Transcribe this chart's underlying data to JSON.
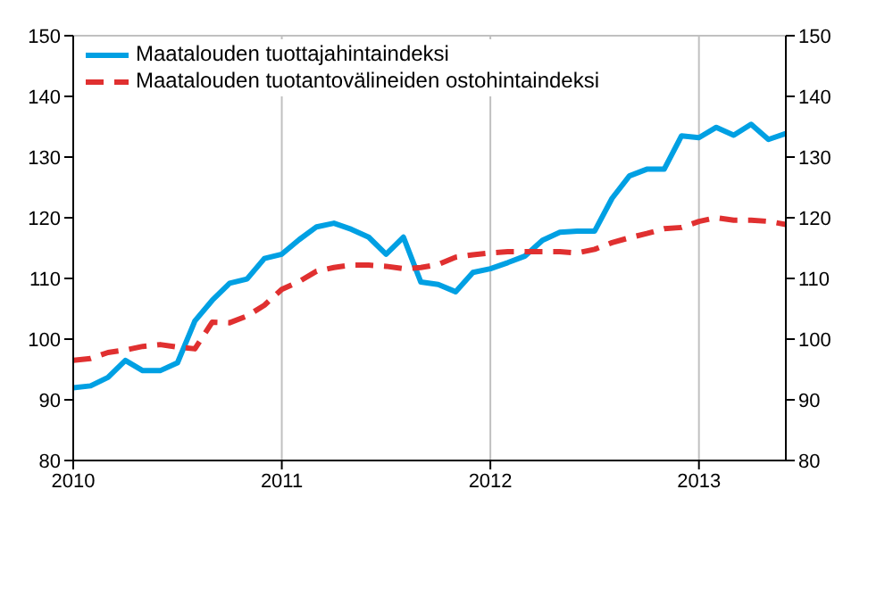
{
  "chart_data": {
    "type": "line",
    "x": [
      "2010-01",
      "2010-02",
      "2010-03",
      "2010-04",
      "2010-05",
      "2010-06",
      "2010-07",
      "2010-08",
      "2010-09",
      "2010-10",
      "2010-11",
      "2010-12",
      "2011-01",
      "2011-02",
      "2011-03",
      "2011-04",
      "2011-05",
      "2011-06",
      "2011-07",
      "2011-08",
      "2011-09",
      "2011-10",
      "2011-11",
      "2011-12",
      "2012-01",
      "2012-02",
      "2012-03",
      "2012-04",
      "2012-05",
      "2012-06",
      "2012-07",
      "2012-08",
      "2012-09",
      "2012-10",
      "2012-11",
      "2012-12",
      "2013-01",
      "2013-02",
      "2013-03",
      "2013-04",
      "2013-05",
      "2013-06"
    ],
    "series": [
      {
        "name": "Maatalouden tuottajahintaindeksi",
        "color": "#00a0e3",
        "line_style": "solid",
        "values": [
          92,
          92.3,
          93.7,
          96.5,
          94.8,
          94.8,
          96.1,
          103,
          106.4,
          109.2,
          109.9,
          113.3,
          114,
          116.4,
          118.5,
          119.1,
          118.1,
          116.8,
          114,
          116.8,
          109.4,
          109,
          107.8,
          111,
          111.6,
          112.6,
          113.7,
          116.3,
          117.6,
          117.8,
          117.8,
          123.2,
          126.9,
          128,
          128,
          133.5,
          133.2,
          134.9,
          133.6,
          135.4,
          132.9,
          133.9
        ]
      },
      {
        "name": "Maatalouden tuotantovälineiden ostohintaindeksi",
        "color": "#e03030",
        "line_style": "dashed",
        "values": [
          96.5,
          96.8,
          97.8,
          98.2,
          98.8,
          99.1,
          98.7,
          98.4,
          102.8,
          102.7,
          103.8,
          105.6,
          108.2,
          109.5,
          111.2,
          111.8,
          112.2,
          112.2,
          112,
          111.6,
          111.8,
          112.3,
          113.5,
          113.9,
          114.2,
          114.4,
          114.4,
          114.4,
          114.4,
          114.2,
          114.8,
          115.9,
          116.7,
          117.4,
          118.2,
          118.4,
          119.4,
          120,
          119.6,
          119.6,
          119.4,
          118.9
        ]
      }
    ],
    "xlim": [
      "2010-01",
      "2013-06"
    ],
    "xticks": [
      "2010",
      "2011",
      "2012",
      "2013"
    ],
    "ylim": [
      80,
      150
    ],
    "yticks": [
      80,
      90,
      100,
      110,
      120,
      130,
      140,
      150
    ],
    "y2lim": [
      80,
      150
    ],
    "y2ticks": [
      80,
      90,
      100,
      110,
      120,
      130,
      140,
      150
    ],
    "grid": true,
    "legend": "top left",
    "marker": "none"
  }
}
